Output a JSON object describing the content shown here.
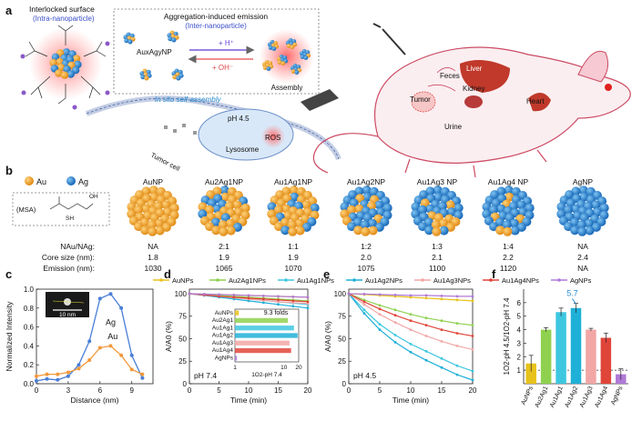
{
  "panel_a": {
    "label": "a",
    "interlocked_title": "Interlocked surface",
    "interlocked_sub": "(Intra-nanoparticle)",
    "aie_title": "Aggregation-induced emission",
    "aie_sub": "(Inter-nanoparticle)",
    "particle_label": "AuxAgyNP",
    "hplus": "+ H⁺",
    "ohminus": "+ OH⁻",
    "assembly": "Assembly",
    "insitu": "In situ self-assembly",
    "ph": "pH 4.5",
    "lysosome": "Lysosome",
    "ros": "ROS",
    "tumor_cell": "Tumor cell",
    "organs": [
      "Feces",
      "Liver",
      "Tumor",
      "Kidney",
      "Heart",
      "Urine"
    ]
  },
  "panel_b": {
    "label": "b",
    "legend": [
      {
        "name": "Au",
        "color": "#f2a93b"
      },
      {
        "name": "Ag",
        "color": "#2b8fd6"
      }
    ],
    "ligand": "(MSA)",
    "row_labels": [
      "NAu/NAg:",
      "Core size (nm):",
      "Emission (nm):"
    ],
    "particles": [
      {
        "name": "AuNP",
        "ratio": "NA",
        "size": "1.8",
        "emission": "1030",
        "ag_fraction": 0
      },
      {
        "name": "Au2Ag1NP",
        "ratio": "2:1",
        "size": "1.9",
        "emission": "1065",
        "ag_fraction": 0.33
      },
      {
        "name": "Au1Ag1NP",
        "ratio": "1:1",
        "size": "1.9",
        "emission": "1070",
        "ag_fraction": 0.5
      },
      {
        "name": "Au1Ag2NP",
        "ratio": "1:2",
        "size": "2.0",
        "emission": "1075",
        "ag_fraction": 0.67
      },
      {
        "name": "Au1Ag3 NP",
        "ratio": "1:3",
        "size": "2.1",
        "emission": "1100",
        "ag_fraction": 0.75
      },
      {
        "name": "Au1Ag4 NP",
        "ratio": "1:4",
        "size": "2.2",
        "emission": "1120",
        "ag_fraction": 0.8
      },
      {
        "name": "AgNP",
        "ratio": "NA",
        "size": "2.4",
        "emission": "NA",
        "ag_fraction": 1
      }
    ]
  },
  "legend_series": [
    {
      "name": "AuNPs",
      "color": "#e8c21c"
    },
    {
      "name": "Au2Ag1NPs",
      "color": "#8fd14f"
    },
    {
      "name": "Au1Ag1NPs",
      "color": "#3ec7e0"
    },
    {
      "name": "Au1Ag2NPs",
      "color": "#1fb0d8"
    },
    {
      "name": "Au1Ag3NPs",
      "color": "#f2a6a6"
    },
    {
      "name": "Au1Ag4NPs",
      "color": "#e0453a"
    },
    {
      "name": "AgNPs",
      "color": "#b07ad8"
    }
  ],
  "chart_data": [
    {
      "panel": "c",
      "type": "line",
      "xlabel": "Distance (nm)",
      "ylabel": "Normalized Intensity",
      "xlim": [
        0,
        11
      ],
      "ylim": [
        0,
        1.0
      ],
      "xticks": [
        0,
        3,
        6,
        9
      ],
      "yticks": [
        0.0,
        0.2,
        0.4,
        0.6,
        0.8,
        1.0
      ],
      "inset_scale": "10 nm",
      "series": [
        {
          "name": "Ag",
          "color": "#4a7fd8",
          "x": [
            0,
            1,
            2,
            3,
            4,
            5,
            6,
            7,
            8,
            9,
            10
          ],
          "y": [
            0.03,
            0.05,
            0.04,
            0.08,
            0.2,
            0.45,
            0.9,
            0.95,
            0.8,
            0.3,
            0.06
          ]
        },
        {
          "name": "Au",
          "color": "#f2993b",
          "x": [
            0,
            1,
            2,
            3,
            4,
            5,
            6,
            7,
            8,
            9,
            10
          ],
          "y": [
            0.08,
            0.1,
            0.1,
            0.12,
            0.16,
            0.25,
            0.38,
            0.4,
            0.3,
            0.15,
            0.1
          ]
        }
      ]
    },
    {
      "panel": "d",
      "type": "line",
      "xlabel": "Time (min)",
      "ylabel": "A/A0 (%)",
      "condition": "pH 7.4",
      "xlim": [
        0,
        20
      ],
      "ylim": [
        0,
        105
      ],
      "xticks": [
        0,
        5,
        10,
        15,
        20
      ],
      "yticks": [
        0,
        25,
        50,
        75,
        100
      ],
      "x": [
        0,
        2.5,
        5,
        7.5,
        10,
        12.5,
        15,
        17.5,
        20
      ],
      "series": [
        {
          "name": "AuNPs",
          "color": "#e8c21c",
          "y": [
            100,
            99.5,
            99,
            98.5,
            98,
            97.5,
            97,
            96.5,
            96
          ]
        },
        {
          "name": "Au2Ag1NPs",
          "color": "#8fd14f",
          "y": [
            100,
            99,
            98,
            97,
            96,
            95,
            94,
            93,
            92
          ]
        },
        {
          "name": "Au1Ag1NPs",
          "color": "#3ec7e0",
          "y": [
            100,
            98.5,
            97,
            95.5,
            94,
            92.5,
            91,
            89.5,
            88
          ]
        },
        {
          "name": "Au1Ag2NPs",
          "color": "#1fb0d8",
          "y": [
            100,
            98,
            96,
            94,
            92,
            90,
            88,
            86,
            84
          ]
        },
        {
          "name": "Au1Ag3NPs",
          "color": "#f2a6a6",
          "y": [
            100,
            98.5,
            97,
            95.5,
            94,
            92.5,
            91,
            90,
            89
          ]
        },
        {
          "name": "Au1Ag4NPs",
          "color": "#e0453a",
          "y": [
            100,
            98.5,
            97,
            96,
            95,
            94,
            93,
            92,
            91
          ]
        },
        {
          "name": "AgNPs",
          "color": "#b07ad8",
          "y": [
            100,
            99.5,
            99,
            98.5,
            98,
            97.5,
            97,
            96.5,
            96
          ]
        }
      ],
      "inset": {
        "type": "bar",
        "xlabel": "1O2-pH 7.4",
        "annotation": "9.3 folds",
        "xlim": [
          1,
          20
        ],
        "xticks": [
          1,
          10,
          20
        ],
        "categories": [
          "AuNPs",
          "Au2Ag1",
          "Au1Ag1",
          "Au1Ag2",
          "Au1Ag3",
          "Au1Ag4",
          "AgNPs"
        ],
        "values": [
          1.2,
          12,
          16,
          19,
          13,
          14,
          1.1
        ]
      }
    },
    {
      "panel": "e",
      "type": "line",
      "xlabel": "Time (min)",
      "ylabel": "A/A0 (%)",
      "condition": "pH 4.5",
      "xlim": [
        0,
        20
      ],
      "ylim": [
        0,
        105
      ],
      "xticks": [
        0,
        5,
        10,
        15,
        20
      ],
      "yticks": [
        0,
        25,
        50,
        75,
        100
      ],
      "x": [
        0,
        2.5,
        5,
        7.5,
        10,
        12.5,
        15,
        17.5,
        20
      ],
      "series": [
        {
          "name": "AuNPs",
          "color": "#e8c21c",
          "y": [
            100,
            99,
            98,
            97,
            96,
            95,
            94,
            93,
            92
          ]
        },
        {
          "name": "Au2Ag1NPs",
          "color": "#8fd14f",
          "y": [
            100,
            93,
            87,
            82,
            77,
            73,
            70,
            67,
            65
          ]
        },
        {
          "name": "Au1Ag1NPs",
          "color": "#3ec7e0",
          "y": [
            100,
            82,
            66,
            54,
            44,
            36,
            28,
            20,
            14
          ]
        },
        {
          "name": "Au1Ag2NPs",
          "color": "#1fb0d8",
          "y": [
            100,
            78,
            60,
            46,
            35,
            26,
            18,
            10,
            4
          ]
        },
        {
          "name": "Au1Ag3NPs",
          "color": "#f2a6a6",
          "y": [
            100,
            88,
            77,
            68,
            60,
            53,
            47,
            42,
            38
          ]
        },
        {
          "name": "Au1Ag4NPs",
          "color": "#e0453a",
          "y": [
            100,
            91,
            83,
            76,
            70,
            65,
            60,
            56,
            53
          ]
        },
        {
          "name": "AgNPs",
          "color": "#b07ad8",
          "y": [
            100,
            99.5,
            99,
            98.5,
            98,
            98,
            97.5,
            97,
            97
          ]
        }
      ]
    },
    {
      "panel": "f",
      "type": "bar",
      "ylabel": "1O2-pH 4.5/1O2-pH 7.4",
      "annotation": "5.7",
      "ylim": [
        0,
        7
      ],
      "yticks": [
        1,
        2,
        3,
        4,
        5,
        6
      ],
      "reference_line": 1,
      "categories": [
        "AuNPs",
        "Au2Ag1",
        "Au1Ag1",
        "Au1Ag2",
        "Au1Ag3",
        "Au1Ag4",
        "AgNPs"
      ],
      "values": [
        1.5,
        4.0,
        5.3,
        5.6,
        4.0,
        3.4,
        0.7
      ],
      "errors": [
        0.6,
        0.15,
        0.3,
        0.35,
        0.1,
        0.35,
        0.4
      ],
      "colors": [
        "#e8c21c",
        "#8fd14f",
        "#3ec7e0",
        "#1fb0d8",
        "#f2a6a6",
        "#e0453a",
        "#b07ad8"
      ]
    }
  ]
}
